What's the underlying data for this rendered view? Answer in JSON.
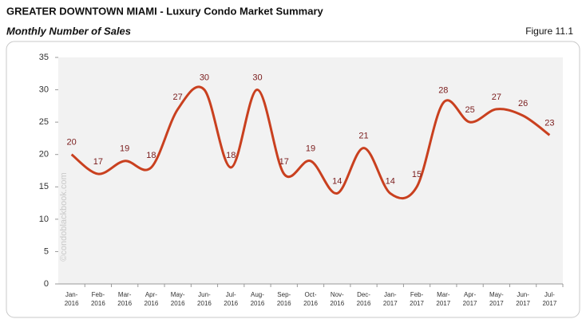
{
  "chart_data": {
    "type": "line",
    "title": "GREATER DOWNTOWN MIAMI - Luxury Condo Market Summary",
    "subtitle": "Monthly Number of Sales",
    "figure_label": "Figure 11.1",
    "watermark": "©condoblackbook.com",
    "categories": [
      "Jan-2016",
      "Feb-2016",
      "Mar-2016",
      "Apr-2016",
      "May-2016",
      "Jun-2016",
      "Jul-2016",
      "Aug-2016",
      "Sep-2016",
      "Oct-2016",
      "Nov-2016",
      "Dec-2016",
      "Jan-2017",
      "Feb-2017",
      "Mar-2017",
      "Apr-2017",
      "May-2017",
      "Jun-2017",
      "Jul-2017"
    ],
    "values": [
      20,
      17,
      19,
      18,
      27,
      30,
      18,
      30,
      17,
      19,
      14,
      21,
      14,
      15,
      28,
      25,
      27,
      26,
      23
    ],
    "color": "#c9401f",
    "label_color": "#7a1c1c",
    "ylim": [
      0,
      35
    ],
    "yticks": [
      0,
      5,
      10,
      15,
      20,
      25,
      30,
      35
    ],
    "grid": false
  }
}
